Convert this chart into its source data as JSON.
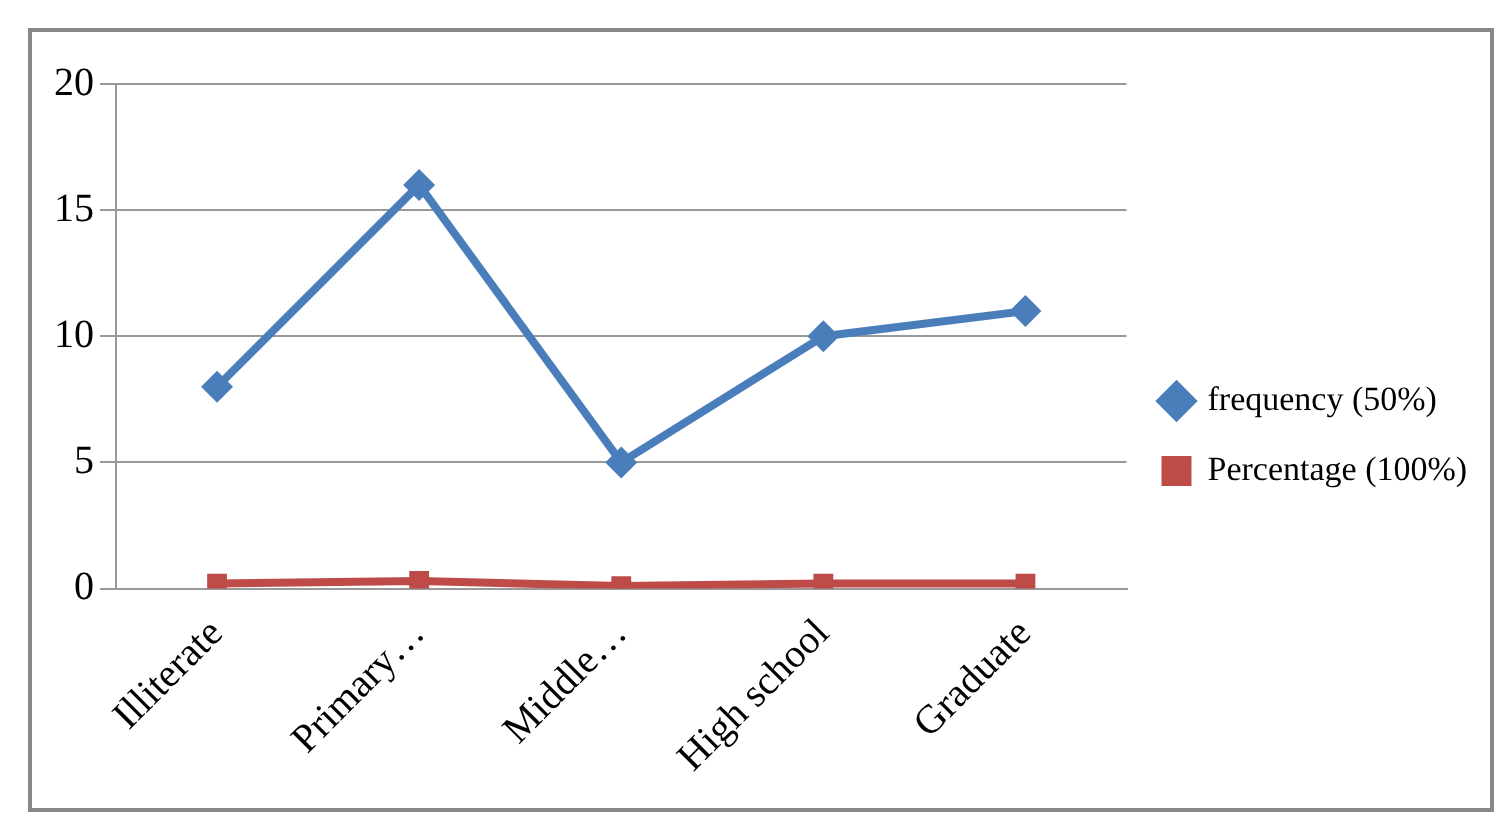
{
  "chart_data": {
    "type": "line",
    "categories": [
      "Illiterate",
      "Primary…",
      "Middle…",
      "High school",
      "Graduate"
    ],
    "series": [
      {
        "name": "frequency (50%)",
        "color": "#4a7ebb",
        "values": [
          8,
          16,
          5,
          10,
          11
        ],
        "marker": "diamond"
      },
      {
        "name": "Percentage (100%)",
        "color": "#be4b48",
        "values": [
          0.2,
          0.3,
          0.1,
          0.2,
          0.2
        ],
        "marker": "square"
      }
    ],
    "ylim": [
      0,
      20
    ],
    "yticks": [
      0,
      5,
      10,
      15,
      20
    ],
    "grid": "y",
    "legend": "right"
  }
}
